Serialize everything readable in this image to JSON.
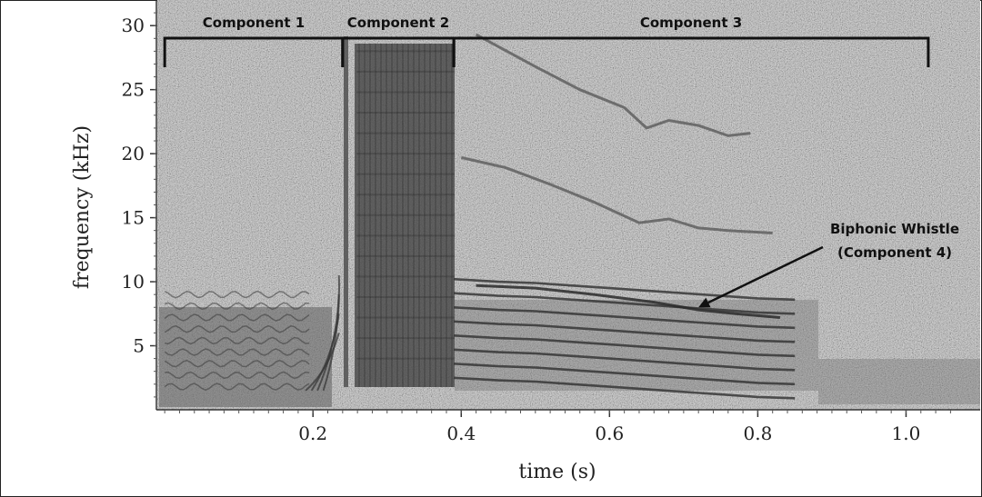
{
  "chart_data": {
    "type": "spectrogram",
    "xlabel": "time (s)",
    "ylabel": "frequency (kHz)",
    "xlim": [
      -0.01,
      1.1
    ],
    "ylim": [
      0,
      32
    ],
    "x_ticks": [
      "0.2",
      "0.4",
      "0.6",
      "0.8",
      "1.0"
    ],
    "x_tick_values": [
      0.2,
      0.4,
      0.6,
      0.8,
      1.0
    ],
    "y_ticks": [
      "5",
      "10",
      "15",
      "20",
      "25",
      "30"
    ],
    "y_tick_values": [
      5,
      10,
      15,
      20,
      25,
      30
    ],
    "components": [
      {
        "label": "Component 1",
        "start": 0.0,
        "end": 0.24
      },
      {
        "label": "Component 2",
        "start": 0.24,
        "end": 0.39
      },
      {
        "label": "Component 3",
        "start": 0.39,
        "end": 1.03
      }
    ],
    "annotation": {
      "lines": [
        "Biphonic Whistle",
        "(Component 4)"
      ],
      "target_time": 0.72,
      "target_freq": 8.0
    },
    "whistle_upper_harmonics": [
      {
        "name": "harmonic-3",
        "x": [
          0.42,
          0.5,
          0.56,
          0.62,
          0.65,
          0.68,
          0.72,
          0.76,
          0.79
        ],
        "y": [
          29.3,
          26.8,
          25.0,
          23.6,
          22.0,
          22.6,
          22.2,
          21.4,
          21.6
        ]
      },
      {
        "name": "harmonic-2",
        "x": [
          0.4,
          0.46,
          0.52,
          0.58,
          0.64,
          0.68,
          0.72,
          0.76,
          0.82
        ],
        "y": [
          19.7,
          18.9,
          17.6,
          16.2,
          14.6,
          14.9,
          14.2,
          14.0,
          13.8
        ]
      }
    ],
    "low_harmonic_stack": {
      "x": [
        0.39,
        0.45,
        0.5,
        0.55,
        0.6,
        0.65,
        0.7,
        0.75,
        0.8,
        0.85
      ],
      "base": [
        2.5,
        2.3,
        2.2,
        2.0,
        1.8,
        1.6,
        1.4,
        1.2,
        1.0,
        0.9
      ],
      "offsets": [
        0.0,
        1.1,
        2.2,
        3.3,
        4.4,
        5.5,
        6.6,
        7.7
      ]
    },
    "biphonic_whistle": {
      "x": [
        0.42,
        0.5,
        0.58,
        0.66,
        0.72,
        0.77,
        0.83
      ],
      "y": [
        9.7,
        9.5,
        9.0,
        8.4,
        7.8,
        7.5,
        7.2
      ]
    }
  }
}
